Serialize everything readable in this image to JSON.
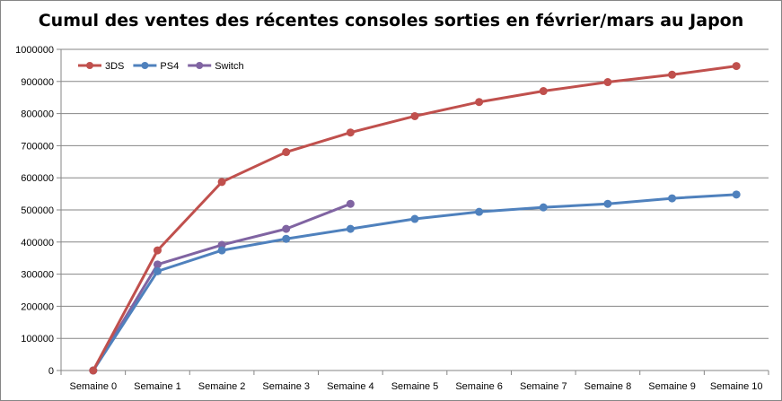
{
  "chart_data": {
    "type": "line",
    "title": "Cumul des ventes des récentes consoles sorties en février/mars au Japon",
    "xlabel": "",
    "ylabel": "",
    "categories": [
      "Semaine 0",
      "Semaine 1",
      "Semaine 2",
      "Semaine 3",
      "Semaine 4",
      "Semaine 5",
      "Semaine 6",
      "Semaine 7",
      "Semaine 8",
      "Semaine 9",
      "Semaine 10"
    ],
    "ylim": [
      0,
      1000000
    ],
    "yticks": [
      "0",
      "100000",
      "200000",
      "300000",
      "400000",
      "500000",
      "600000",
      "700000",
      "800000",
      "900000",
      "1000000"
    ],
    "grid": true,
    "legend": "top-left",
    "series": [
      {
        "name": "3DS",
        "color": "#C0504D",
        "values": [
          0,
          374000,
          587000,
          680000,
          741000,
          792000,
          836000,
          870000,
          898000,
          921000,
          948000
        ]
      },
      {
        "name": "PS4",
        "color": "#4F81BD",
        "values": [
          0,
          309000,
          374000,
          410000,
          441000,
          472000,
          494000,
          508000,
          519000,
          536000,
          548000
        ]
      },
      {
        "name": "Switch",
        "color": "#8064A2",
        "values": [
          0,
          330000,
          391000,
          441000,
          519000,
          null,
          null,
          null,
          null,
          null,
          null
        ]
      }
    ]
  }
}
